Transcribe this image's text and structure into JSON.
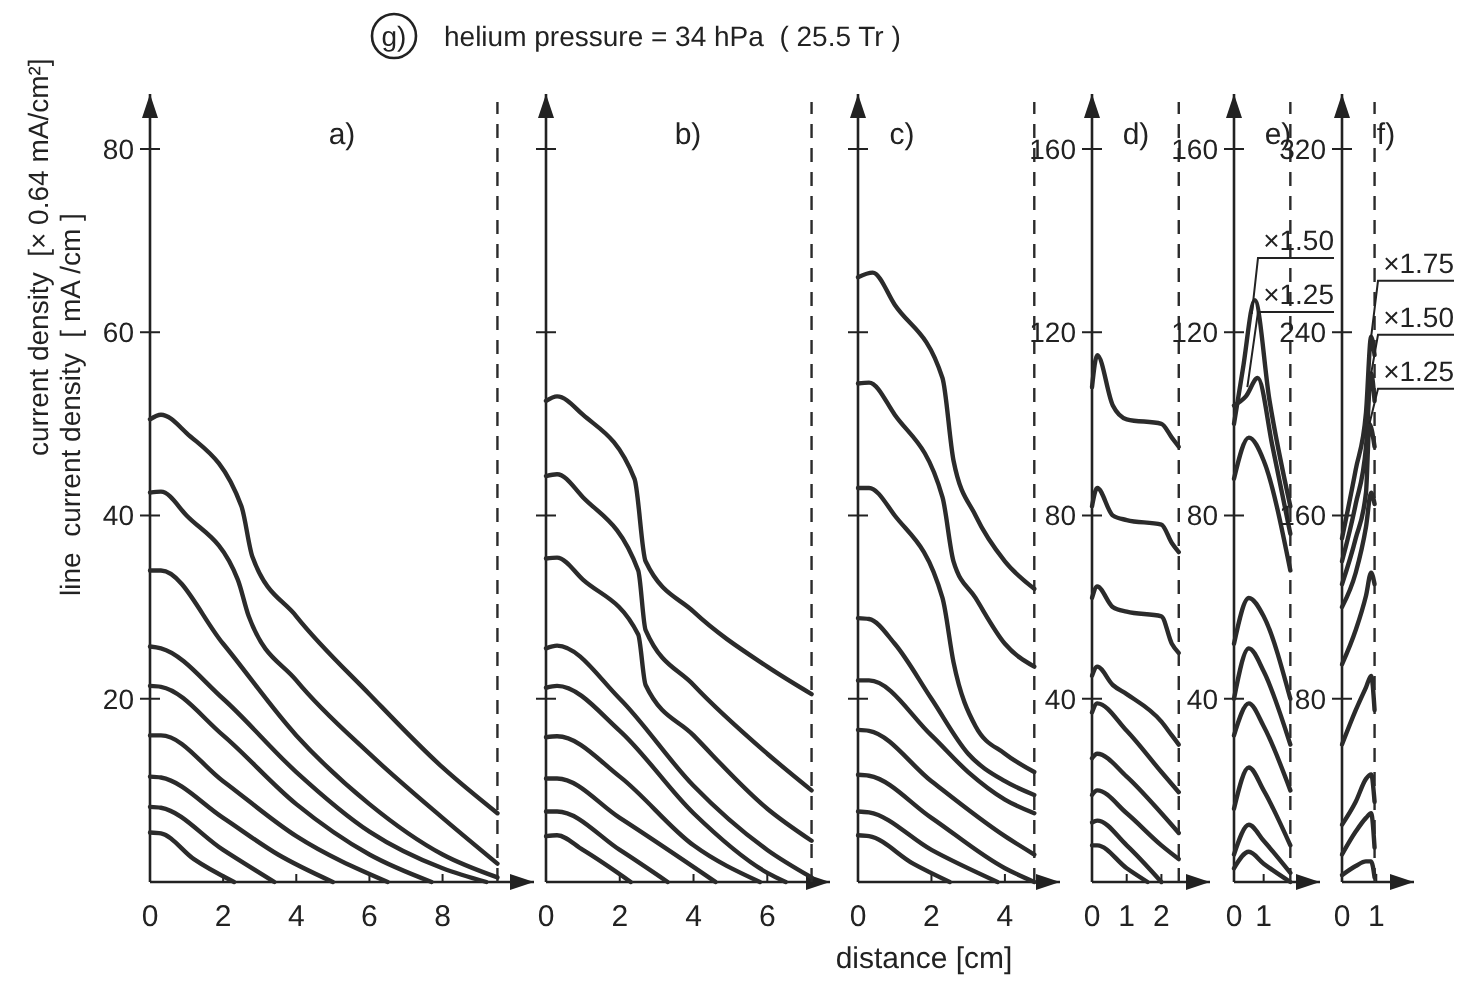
{
  "chart_data": [
    {
      "type": "line",
      "title": "a)",
      "ylabel": "current density  [× 0.64 mA/cm²]\nline  current density  [ mA /cm ]",
      "xlim": [
        0,
        10.5
      ],
      "ylim": [
        0,
        86
      ],
      "xticks": [
        0,
        2,
        4,
        6,
        8
      ],
      "yticks": [
        20,
        40,
        60,
        80
      ],
      "annotations": [
        "g)",
        "helium pressure = 34 hPa  ( 25.5 Tr )"
      ],
      "ref_lines": [
        {
          "axis": "x",
          "value": 9.5,
          "line_style": "dashed",
          "color": "#2b2b2b"
        }
      ],
      "series": [
        {
          "color": "#2b2b2b",
          "x": [
            0,
            0.3,
            1,
            2.5,
            2.8,
            4,
            6,
            8,
            9.5
          ],
          "values": [
            50.5,
            51,
            49,
            41,
            35.5,
            29,
            20.5,
            12.5,
            7.5
          ]
        },
        {
          "color": "#2b2b2b",
          "x": [
            0,
            0.3,
            1,
            2.4,
            2.7,
            4,
            6,
            8,
            9.5
          ],
          "values": [
            42.5,
            42.6,
            40,
            33,
            29,
            22,
            14,
            7,
            2
          ]
        },
        {
          "color": "#2b2b2b",
          "x": [
            0,
            0.3,
            2,
            4,
            6,
            8,
            9.5
          ],
          "values": [
            34,
            34,
            26,
            16,
            8.5,
            3,
            0.5
          ]
        },
        {
          "color": "#2b2b2b",
          "x": [
            0,
            0.3,
            2,
            4,
            6,
            8,
            9.2
          ],
          "values": [
            25.7,
            25.5,
            20,
            12,
            5.5,
            1.5,
            0
          ]
        },
        {
          "color": "#2b2b2b",
          "x": [
            0,
            0.3,
            2,
            4,
            6,
            7.7
          ],
          "values": [
            21.4,
            21.3,
            16,
            8.5,
            3,
            0
          ]
        },
        {
          "color": "#2b2b2b",
          "x": [
            0,
            0.3,
            2,
            4,
            6.5
          ],
          "values": [
            16,
            16,
            11,
            5,
            0
          ]
        },
        {
          "color": "#2b2b2b",
          "x": [
            0,
            0.3,
            2,
            3.5,
            5
          ],
          "values": [
            11.5,
            11.4,
            7,
            3,
            0
          ]
        },
        {
          "color": "#2b2b2b",
          "x": [
            0,
            0.3,
            2,
            3.4
          ],
          "values": [
            8.2,
            8.1,
            3.5,
            0
          ]
        },
        {
          "color": "#2b2b2b",
          "x": [
            0,
            0.3,
            1.2,
            2.3
          ],
          "values": [
            5.4,
            5.3,
            2.5,
            0
          ]
        }
      ]
    },
    {
      "type": "line",
      "title": "b)",
      "xlim": [
        0,
        7.7
      ],
      "ylim": [
        0,
        86
      ],
      "xticks": [
        0,
        2,
        4,
        6
      ],
      "yticks": [
        {
          "value": 20,
          "label": null
        },
        {
          "value": 40,
          "label": null
        },
        {
          "value": 60,
          "label": null
        },
        {
          "value": 80,
          "label": null
        }
      ],
      "tick_labels": "x",
      "ref_lines": [
        {
          "axis": "x",
          "value": 7.2,
          "line_style": "dashed",
          "color": "#2b2b2b"
        }
      ],
      "series": [
        {
          "color": "#2b2b2b",
          "x": [
            0,
            0.3,
            1,
            2.4,
            2.7,
            4,
            6,
            7.2
          ],
          "values": [
            52.5,
            53,
            51,
            44,
            35,
            29.5,
            23.5,
            20.5
          ]
        },
        {
          "color": "#2b2b2b",
          "x": [
            0,
            0.3,
            1,
            2.5,
            2.7,
            4,
            6,
            7.2
          ],
          "values": [
            44.3,
            44.5,
            42,
            34,
            27.5,
            21.5,
            14,
            10
          ]
        },
        {
          "color": "#2b2b2b",
          "x": [
            0,
            0.3,
            1,
            2.5,
            2.7,
            4,
            6,
            7.2
          ],
          "values": [
            35.3,
            35.4,
            33,
            27,
            21.5,
            16,
            8,
            4.5
          ]
        },
        {
          "color": "#2b2b2b",
          "x": [
            0,
            0.3,
            2,
            4,
            6,
            7.2
          ],
          "values": [
            25.5,
            25.8,
            20,
            10.5,
            3.5,
            0.5
          ]
        },
        {
          "color": "#2b2b2b",
          "x": [
            0,
            0.3,
            2,
            4,
            6,
            6.5
          ],
          "values": [
            21.2,
            21.4,
            16.5,
            7.5,
            1,
            0
          ]
        },
        {
          "color": "#2b2b2b",
          "x": [
            0,
            0.3,
            2,
            4,
            5.8
          ],
          "values": [
            15.8,
            15.9,
            11.5,
            4,
            0
          ]
        },
        {
          "color": "#2b2b2b",
          "x": [
            0,
            0.3,
            2,
            4.6
          ],
          "values": [
            11.3,
            11.3,
            7,
            0
          ]
        },
        {
          "color": "#2b2b2b",
          "x": [
            0,
            0.3,
            2,
            3.3
          ],
          "values": [
            7.7,
            7.7,
            3.5,
            0
          ]
        },
        {
          "color": "#2b2b2b",
          "x": [
            0,
            0.3,
            1,
            2.3
          ],
          "values": [
            5,
            5.1,
            3.5,
            0
          ]
        }
      ]
    },
    {
      "type": "line",
      "title": "c)",
      "xlabel": "distance   [cm]",
      "xlim": [
        0,
        5.5
      ],
      "ylim": [
        0,
        86
      ],
      "xticks": [
        0,
        2,
        4
      ],
      "yticks": [
        {
          "value": 20,
          "label": null
        },
        {
          "value": 40,
          "label": null
        },
        {
          "value": 60,
          "label": null
        },
        {
          "value": 80,
          "label": null
        }
      ],
      "tick_labels": "x",
      "ref_lines": [
        {
          "axis": "x",
          "value": 4.8,
          "line_style": "dashed",
          "color": "#2b2b2b"
        }
      ],
      "series": [
        {
          "color": "#2b2b2b",
          "x": [
            0,
            0.4,
            1,
            2.3,
            2.6,
            3.2,
            4,
            4.8
          ],
          "values": [
            66,
            66.5,
            63,
            55,
            46,
            40,
            35,
            32
          ]
        },
        {
          "color": "#2b2b2b",
          "x": [
            0,
            0.3,
            1,
            2.3,
            2.6,
            3.2,
            4,
            4.8
          ],
          "values": [
            54.4,
            54.5,
            51,
            42,
            35,
            31,
            26,
            23.5
          ]
        },
        {
          "color": "#2b2b2b",
          "x": [
            0,
            0.3,
            1,
            2.3,
            2.6,
            3.2,
            4,
            4.8
          ],
          "values": [
            43,
            43,
            40,
            31,
            24,
            17,
            14,
            12
          ]
        },
        {
          "color": "#2b2b2b",
          "x": [
            0,
            0.3,
            1,
            2,
            3,
            4,
            4.8
          ],
          "values": [
            28.8,
            28.7,
            26,
            20,
            14,
            11,
            9.5
          ]
        },
        {
          "color": "#2b2b2b",
          "x": [
            0,
            0.3,
            2,
            3,
            4,
            4.8
          ],
          "values": [
            22,
            22,
            16,
            12,
            9,
            7.5
          ]
        },
        {
          "color": "#2b2b2b",
          "x": [
            0,
            0.3,
            2,
            4,
            4.8
          ],
          "values": [
            16.6,
            16.5,
            11,
            5,
            3
          ]
        },
        {
          "color": "#2b2b2b",
          "x": [
            0,
            0.3,
            2,
            4,
            4.8
          ],
          "values": [
            11.7,
            11.6,
            7,
            1.5,
            0
          ]
        },
        {
          "color": "#2b2b2b",
          "x": [
            0,
            0.3,
            2,
            3.8
          ],
          "values": [
            7.7,
            7.6,
            3.5,
            0
          ]
        },
        {
          "color": "#2b2b2b",
          "x": [
            0,
            0.3,
            1.5,
            2.5
          ],
          "values": [
            5.1,
            5,
            2,
            0
          ]
        }
      ]
    },
    {
      "type": "line",
      "title": "d)",
      "xlim": [
        0,
        3.4
      ],
      "ylim": [
        0,
        172
      ],
      "xticks": [
        0,
        1,
        2
      ],
      "yticks": [
        40,
        80,
        120,
        160
      ],
      "ref_lines": [
        {
          "axis": "x",
          "value": 2.5,
          "line_style": "dashed",
          "color": "#2b2b2b"
        }
      ],
      "series": [
        {
          "color": "#2b2b2b",
          "x": [
            0,
            0.15,
            0.6,
            1,
            2,
            2.3,
            2.5
          ],
          "values": [
            108,
            115,
            104,
            101,
            100,
            97,
            95
          ]
        },
        {
          "color": "#2b2b2b",
          "x": [
            0,
            0.15,
            0.6,
            1,
            2,
            2.3,
            2.5
          ],
          "values": [
            82,
            86,
            80,
            79,
            78,
            74,
            72
          ]
        },
        {
          "color": "#2b2b2b",
          "x": [
            0,
            0.15,
            0.6,
            1,
            2,
            2.3,
            2.5
          ],
          "values": [
            62,
            64.5,
            60,
            59,
            58,
            52,
            50
          ]
        },
        {
          "color": "#2b2b2b",
          "x": [
            0,
            0.15,
            0.6,
            1,
            2,
            2.3,
            2.5
          ],
          "values": [
            45,
            47,
            43,
            41,
            35,
            32,
            30
          ]
        },
        {
          "color": "#2b2b2b",
          "x": [
            0,
            0.15,
            1,
            2,
            2.5
          ],
          "values": [
            37,
            39,
            33,
            24,
            19.6
          ]
        },
        {
          "color": "#2b2b2b",
          "x": [
            0,
            0.15,
            1,
            2,
            2.5
          ],
          "values": [
            27,
            28,
            23,
            15,
            10.7
          ]
        },
        {
          "color": "#2b2b2b",
          "x": [
            0,
            0.15,
            1,
            2,
            2.5
          ],
          "values": [
            19,
            20,
            15,
            8,
            5
          ]
        },
        {
          "color": "#2b2b2b",
          "x": [
            0,
            0.15,
            1,
            2
          ],
          "values": [
            13,
            13.4,
            8,
            0
          ]
        },
        {
          "color": "#2b2b2b",
          "x": [
            0,
            0.15,
            1,
            1.6
          ],
          "values": [
            8,
            8,
            3,
            0
          ]
        }
      ]
    },
    {
      "type": "line",
      "title": "e)",
      "xlim": [
        0,
        2.9
      ],
      "ylim": [
        0,
        172
      ],
      "xticks": [
        0,
        1
      ],
      "yticks": [
        40,
        80,
        120,
        160
      ],
      "ref_lines": [
        {
          "axis": "x",
          "value": 1.9,
          "line_style": "dashed",
          "color": "#2b2b2b"
        }
      ],
      "annotations": [
        {
          "text": "×1.50",
          "x": 0.6,
          "y": 124
        },
        {
          "text": "×1.25",
          "x": 0.45,
          "y": 108
        }
      ],
      "series": [
        {
          "color": "#2b2b2b",
          "x": [
            0,
            0.3,
            0.7,
            1.2,
            1.9
          ],
          "values": [
            100,
            112,
            127,
            105,
            82
          ]
        },
        {
          "color": "#2b2b2b",
          "x": [
            0,
            0.4,
            0.8,
            1.3,
            1.9
          ],
          "values": [
            104,
            106,
            110,
            95,
            76
          ]
        },
        {
          "color": "#2b2b2b",
          "x": [
            0,
            0.5,
            1,
            1.9
          ],
          "values": [
            88,
            97,
            92,
            68
          ]
        },
        {
          "color": "#2b2b2b",
          "x": [
            0,
            0.5,
            1,
            1.9
          ],
          "values": [
            52,
            62,
            58,
            40
          ]
        },
        {
          "color": "#2b2b2b",
          "x": [
            0,
            0.5,
            1,
            1.9
          ],
          "values": [
            40,
            51,
            46,
            30
          ]
        },
        {
          "color": "#2b2b2b",
          "x": [
            0,
            0.5,
            1,
            1.9
          ],
          "values": [
            32,
            39,
            34,
            20
          ]
        },
        {
          "color": "#2b2b2b",
          "x": [
            0,
            0.5,
            1,
            1.9
          ],
          "values": [
            16,
            25,
            20,
            8
          ]
        },
        {
          "color": "#2b2b2b",
          "x": [
            0,
            0.5,
            1,
            1.9
          ],
          "values": [
            6,
            12.5,
            9,
            2
          ]
        },
        {
          "color": "#2b2b2b",
          "x": [
            0,
            0.5,
            1,
            1.9
          ],
          "values": [
            3,
            6.6,
            4,
            0
          ]
        }
      ]
    },
    {
      "type": "line",
      "title": "f)",
      "xlim": [
        0,
        2.1
      ],
      "ylim": [
        0,
        344
      ],
      "xticks": [
        0,
        1
      ],
      "yticks": [
        80,
        160,
        240,
        320
      ],
      "ref_lines": [
        {
          "axis": "x",
          "value": 0.95,
          "line_style": "dashed",
          "color": "#2b2b2b"
        }
      ],
      "annotations": [
        {
          "text": "×1.75",
          "x": 0.85,
          "y": 238
        },
        {
          "text": "×1.50",
          "x": 0.85,
          "y": 222
        },
        {
          "text": "×1.25",
          "x": 0.8,
          "y": 200
        }
      ],
      "series": [
        {
          "color": "#2b2b2b",
          "x": [
            0,
            0.4,
            0.7,
            0.85,
            0.95
          ],
          "values": [
            150,
            180,
            205,
            238,
            230
          ]
        },
        {
          "color": "#2b2b2b",
          "x": [
            0,
            0.4,
            0.7,
            0.85,
            0.95
          ],
          "values": [
            140,
            165,
            190,
            222,
            210
          ]
        },
        {
          "color": "#2b2b2b",
          "x": [
            0,
            0.4,
            0.7,
            0.8,
            0.95
          ],
          "values": [
            130,
            150,
            170,
            200,
            190
          ]
        },
        {
          "color": "#2b2b2b",
          "x": [
            0,
            0.4,
            0.7,
            0.85,
            0.95
          ],
          "values": [
            120,
            135,
            155,
            170,
            165
          ]
        },
        {
          "color": "#2b2b2b",
          "x": [
            0,
            0.4,
            0.7,
            0.85,
            0.95
          ],
          "values": [
            95,
            110,
            125,
            135,
            130
          ]
        },
        {
          "color": "#2b2b2b",
          "x": [
            0,
            0.4,
            0.7,
            0.85,
            0.95
          ],
          "values": [
            60,
            75,
            85,
            90,
            75
          ]
        },
        {
          "color": "#2b2b2b",
          "x": [
            0,
            0.4,
            0.7,
            0.85,
            0.95
          ],
          "values": [
            25,
            35,
            45,
            47,
            35
          ]
        },
        {
          "color": "#2b2b2b",
          "x": [
            0,
            0.4,
            0.7,
            0.85,
            0.95
          ],
          "values": [
            12,
            22,
            28,
            30,
            15
          ]
        },
        {
          "color": "#2b2b2b",
          "x": [
            0,
            0.4,
            0.7,
            0.85,
            0.95
          ],
          "values": [
            3,
            7,
            9,
            9,
            2
          ]
        }
      ]
    }
  ]
}
